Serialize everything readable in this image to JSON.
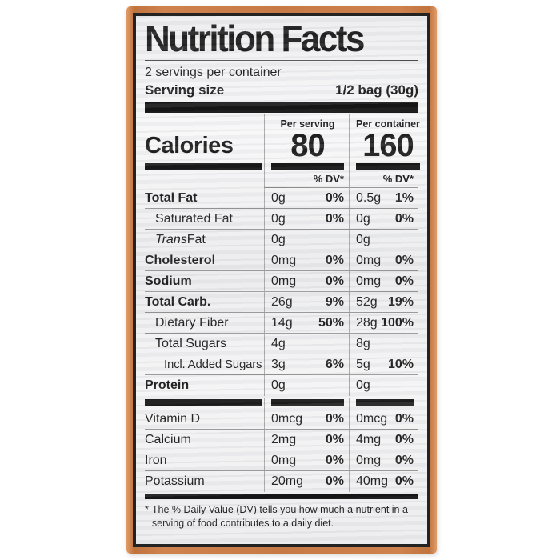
{
  "label": {
    "title": "Nutrition Facts",
    "servings_per_container": "2 servings per container",
    "serving_size_label": "Serving size",
    "serving_size_value": "1/2 bag (30g)",
    "calories_label": "Calories",
    "per_serving_header": "Per serving",
    "per_container_header": "Per container",
    "calories_per_serving": "80",
    "calories_per_container": "160",
    "dv_header": "% DV*",
    "rows": [
      {
        "name": "Total Fat",
        "bold": true,
        "indent": 0,
        "ps_amt": "0g",
        "ps_dv": "0%",
        "pc_amt": "0.5g",
        "pc_dv": "1%"
      },
      {
        "name": "Saturated Fat",
        "bold": false,
        "indent": 1,
        "ps_amt": "0g",
        "ps_dv": "0%",
        "pc_amt": "0g",
        "pc_dv": "0%"
      },
      {
        "name_italic": "Trans",
        "name": " Fat",
        "bold": false,
        "indent": 1,
        "ps_amt": "0g",
        "ps_dv": "",
        "pc_amt": "0g",
        "pc_dv": ""
      },
      {
        "name": "Cholesterol",
        "bold": true,
        "indent": 0,
        "ps_amt": "0mg",
        "ps_dv": "0%",
        "pc_amt": "0mg",
        "pc_dv": "0%"
      },
      {
        "name": "Sodium",
        "bold": true,
        "indent": 0,
        "ps_amt": "0mg",
        "ps_dv": "0%",
        "pc_amt": "0mg",
        "pc_dv": "0%"
      },
      {
        "name": "Total Carb.",
        "bold": true,
        "indent": 0,
        "ps_amt": "26g",
        "ps_dv": "9%",
        "pc_amt": "52g",
        "pc_dv": "19%"
      },
      {
        "name": "Dietary Fiber",
        "bold": false,
        "indent": 1,
        "ps_amt": "14g",
        "ps_dv": "50%",
        "pc_amt": "28g",
        "pc_dv": "100%"
      },
      {
        "name": "Total Sugars",
        "bold": false,
        "indent": 1,
        "ps_amt": "4g",
        "ps_dv": "",
        "pc_amt": "8g",
        "pc_dv": ""
      },
      {
        "name": "Incl. Added Sugars",
        "bold": false,
        "indent": 2,
        "ps_amt": "3g",
        "ps_dv": "6%",
        "pc_amt": "5g",
        "pc_dv": "10%"
      },
      {
        "name": "Protein",
        "bold": true,
        "indent": 0,
        "ps_amt": "0g",
        "ps_dv": "",
        "pc_amt": "0g",
        "pc_dv": ""
      }
    ],
    "vitamins": [
      {
        "name": "Vitamin D",
        "bold": false,
        "indent": 0,
        "ps_amt": "0mcg",
        "ps_dv": "0%",
        "pc_amt": "0mcg",
        "pc_dv": "0%"
      },
      {
        "name": "Calcium",
        "bold": false,
        "indent": 0,
        "ps_amt": "2mg",
        "ps_dv": "0%",
        "pc_amt": "4mg",
        "pc_dv": "0%"
      },
      {
        "name": "Iron",
        "bold": false,
        "indent": 0,
        "ps_amt": "0mg",
        "ps_dv": "0%",
        "pc_amt": "0mg",
        "pc_dv": "0%"
      },
      {
        "name": "Potassium",
        "bold": false,
        "indent": 0,
        "ps_amt": "20mg",
        "ps_dv": "0%",
        "pc_amt": "40mg",
        "pc_dv": "0%"
      }
    ],
    "footnote_marker": "*",
    "footnote": "The % Daily Value (DV) tells you how much a nutrient in a serving of food contributes to a daily diet."
  },
  "colors": {
    "bag_orange": "#c77a45",
    "label_background": "#f1f1f2",
    "text": "#1d1d1d",
    "hairline": "#949494",
    "thick_bar": "#121212"
  }
}
